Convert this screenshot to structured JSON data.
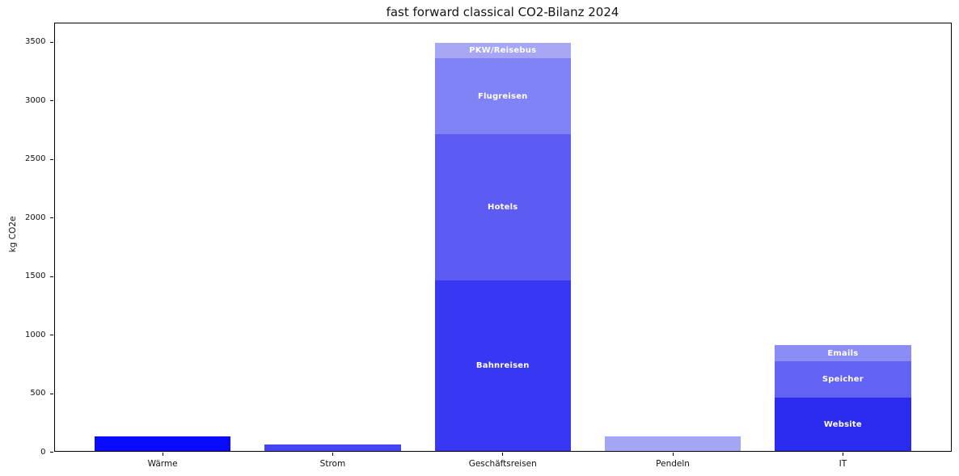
{
  "title": "fast forward classical CO2-Bilanz 2024",
  "chart_data": {
    "type": "bar",
    "stacked": true,
    "title": "fast forward classical CO2-Bilanz 2024",
    "xlabel": "",
    "ylabel": "kg CO2e",
    "ylim": [
      0,
      3665
    ],
    "yticks": [
      0,
      500,
      1000,
      1500,
      2000,
      2500,
      3000,
      3500
    ],
    "grid": false,
    "legend_position": "none",
    "categories": [
      "Wärme",
      "Strom",
      "Geschäftsreisen",
      "Pendeln",
      "IT"
    ],
    "bars": [
      {
        "category": "Wärme",
        "total": 130,
        "segments": [
          {
            "label": "",
            "value": 130,
            "color": "#0a0afc"
          }
        ]
      },
      {
        "category": "Strom",
        "total": 60,
        "segments": [
          {
            "label": "",
            "value": 60,
            "color": "#4545f2"
          }
        ]
      },
      {
        "category": "Geschäftsreisen",
        "total": 3490,
        "segments": [
          {
            "label": "Bahnreisen",
            "value": 1460,
            "color": "#3838f3"
          },
          {
            "label": "Hotels",
            "value": 1245,
            "color": "#5c5cf3"
          },
          {
            "label": "Flugreisen",
            "value": 650,
            "color": "#8083f6"
          },
          {
            "label": "PKW/Reisebus",
            "value": 135,
            "color": "#a6a6f4"
          }
        ]
      },
      {
        "category": "Pendeln",
        "total": 130,
        "segments": [
          {
            "label": "",
            "value": 130,
            "color": "#a4a5f4"
          }
        ]
      },
      {
        "category": "IT",
        "total": 905,
        "segments": [
          {
            "label": "Website",
            "value": 460,
            "color": "#2c2cf0"
          },
          {
            "label": "Speicher",
            "value": 310,
            "color": "#6263f4"
          },
          {
            "label": "Emails",
            "value": 135,
            "color": "#8b8cf5"
          }
        ]
      }
    ]
  }
}
